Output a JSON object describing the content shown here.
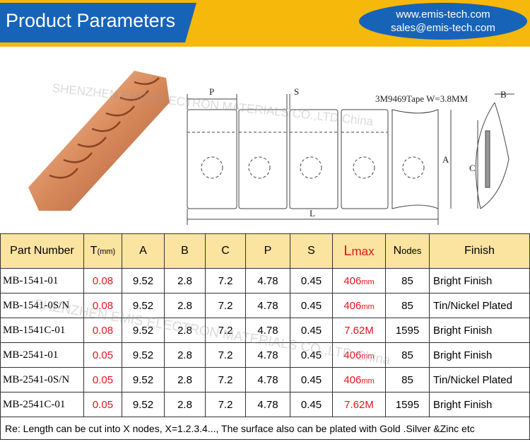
{
  "header": {
    "title": "Product Parameters",
    "website": "www.emis-tech.com",
    "email": "sales@emis-tech.com"
  },
  "watermark": "SHENZHEN EMIS ELECTRON MATERIALS CO.,LTD China",
  "drawing": {
    "p": "P",
    "s": "S",
    "tape": "3M9469Tape W=3.8MM",
    "b": "B",
    "a": "A",
    "c": "C",
    "l": "L"
  },
  "table": {
    "columns": [
      {
        "text": "Part Number"
      },
      {
        "text": "T",
        "sub": "(mm)"
      },
      {
        "text": "A"
      },
      {
        "text": "B"
      },
      {
        "text": "C"
      },
      {
        "text": "P"
      },
      {
        "text": "S"
      },
      {
        "text": "L",
        "sub": "max"
      },
      {
        "text": "N",
        "sub": "odes"
      },
      {
        "text": "Finish"
      }
    ],
    "rows": [
      [
        "MB-1541-01",
        "0.08",
        "9.52",
        "2.8",
        "7.2",
        "4.78",
        "0.45",
        {
          "value": "406",
          "unit": "mm"
        },
        "85",
        "Bright Finish"
      ],
      [
        "MB-1541-0S/N",
        "0.08",
        "9.52",
        "2.8",
        "7.2",
        "4.78",
        "0.45",
        {
          "value": "406",
          "unit": "mm"
        },
        "85",
        "Tin/Nickel Plated"
      ],
      [
        "MB-1541C-01",
        "0.08",
        "9.52",
        "2.8",
        "7.2",
        "4.78",
        "0.45",
        {
          "value": "7.62",
          "unit": "M"
        },
        "1595",
        "Bright Finish"
      ],
      [
        "MB-2541-01",
        "0.05",
        "9.52",
        "2.8",
        "7.2",
        "4.78",
        "0.45",
        {
          "value": "406",
          "unit": "mm"
        },
        "85",
        "Bright Finish"
      ],
      [
        "MB-2541-0S/N",
        "0.05",
        "9.52",
        "2.8",
        "7.2",
        "4.78",
        "0.45",
        {
          "value": "406",
          "unit": "mm"
        },
        "85",
        "Tin/Nickel Plated"
      ],
      [
        "MB-2541C-01",
        "0.05",
        "9.52",
        "2.8",
        "7.2",
        "4.78",
        "0.45",
        {
          "value": "7.62",
          "unit": "M"
        },
        "1595",
        "Bright Finish"
      ]
    ],
    "note": "Re: Length can be cut into X  nodes, X=1.2.3.4..., The surface also can be plated with Gold .Silver &Zinc etc"
  }
}
